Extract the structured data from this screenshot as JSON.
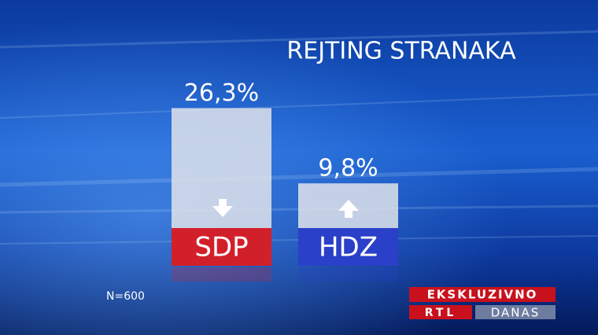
{
  "chart_data": {
    "type": "bar",
    "title": "REJTING STRANAKA",
    "categories": [
      "SDP",
      "HDZ"
    ],
    "values": [
      26.3,
      9.8
    ],
    "value_labels": [
      "26,3%",
      "9,8%"
    ],
    "bar_color": "#dfe3ea",
    "label_colors": [
      "#d2202b",
      "#2b40c8"
    ],
    "note": "N=600"
  },
  "logo": {
    "tag": "EKSKLUZIVNO",
    "channel": "RTL",
    "show": "DANAS"
  }
}
